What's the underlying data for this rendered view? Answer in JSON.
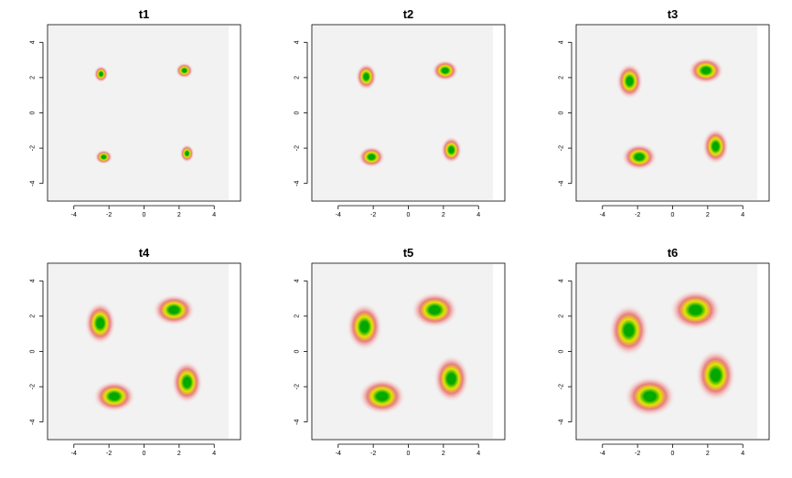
{
  "chart_data": [
    {
      "type": "heatmap",
      "title": "t1",
      "xlim": [
        -5.5,
        5.5
      ],
      "ylim": [
        -5,
        5
      ],
      "x_ticks": [
        -4,
        -2,
        0,
        2,
        4
      ],
      "y_ticks": [
        -4,
        -2,
        0,
        2,
        4
      ],
      "grid": false,
      "blobs": [
        {
          "x": -2.45,
          "y": 2.2,
          "sx": 0.13,
          "sy": 0.15
        },
        {
          "x": 2.3,
          "y": 2.4,
          "sx": 0.16,
          "sy": 0.14
        },
        {
          "x": -2.3,
          "y": -2.5,
          "sx": 0.16,
          "sy": 0.13
        },
        {
          "x": 2.45,
          "y": -2.3,
          "sx": 0.13,
          "sy": 0.16
        }
      ]
    },
    {
      "type": "heatmap",
      "title": "t2",
      "xlim": [
        -5.5,
        5.5
      ],
      "ylim": [
        -5,
        5
      ],
      "x_ticks": [
        -4,
        -2,
        0,
        2,
        4
      ],
      "y_ticks": [
        -4,
        -2,
        0,
        2,
        4
      ],
      "grid": false,
      "blobs": [
        {
          "x": -2.4,
          "y": 2.05,
          "sx": 0.19,
          "sy": 0.24
        },
        {
          "x": 2.1,
          "y": 2.4,
          "sx": 0.24,
          "sy": 0.19
        },
        {
          "x": -2.1,
          "y": -2.5,
          "sx": 0.24,
          "sy": 0.19
        },
        {
          "x": 2.45,
          "y": -2.1,
          "sx": 0.19,
          "sy": 0.24
        }
      ]
    },
    {
      "type": "heatmap",
      "title": "t3",
      "xlim": [
        -5.5,
        5.5
      ],
      "ylim": [
        -5,
        5
      ],
      "x_ticks": [
        -4,
        -2,
        0,
        2,
        4
      ],
      "y_ticks": [
        -4,
        -2,
        0,
        2,
        4
      ],
      "grid": false,
      "blobs": [
        {
          "x": -2.45,
          "y": 1.8,
          "sx": 0.24,
          "sy": 0.32
        },
        {
          "x": 1.9,
          "y": 2.4,
          "sx": 0.32,
          "sy": 0.24
        },
        {
          "x": -1.9,
          "y": -2.5,
          "sx": 0.32,
          "sy": 0.24
        },
        {
          "x": 2.45,
          "y": -1.9,
          "sx": 0.24,
          "sy": 0.32
        }
      ]
    },
    {
      "type": "heatmap",
      "title": "t4",
      "xlim": [
        -5.5,
        5.5
      ],
      "ylim": [
        -5,
        5
      ],
      "x_ticks": [
        -4,
        -2,
        0,
        2,
        4
      ],
      "y_ticks": [
        -4,
        -2,
        0,
        2,
        4
      ],
      "grid": false,
      "blobs": [
        {
          "x": -2.5,
          "y": 1.6,
          "sx": 0.28,
          "sy": 0.38
        },
        {
          "x": 1.7,
          "y": 2.35,
          "sx": 0.38,
          "sy": 0.28
        },
        {
          "x": -1.7,
          "y": -2.55,
          "sx": 0.38,
          "sy": 0.28
        },
        {
          "x": 2.45,
          "y": -1.75,
          "sx": 0.28,
          "sy": 0.38
        }
      ]
    },
    {
      "type": "heatmap",
      "title": "t5",
      "xlim": [
        -5.5,
        5.5
      ],
      "ylim": [
        -5,
        5
      ],
      "x_ticks": [
        -4,
        -2,
        0,
        2,
        4
      ],
      "y_ticks": [
        -4,
        -2,
        0,
        2,
        4
      ],
      "grid": false,
      "blobs": [
        {
          "x": -2.5,
          "y": 1.4,
          "sx": 0.32,
          "sy": 0.42
        },
        {
          "x": 1.5,
          "y": 2.35,
          "sx": 0.42,
          "sy": 0.32
        },
        {
          "x": -1.5,
          "y": -2.55,
          "sx": 0.42,
          "sy": 0.32
        },
        {
          "x": 2.45,
          "y": -1.55,
          "sx": 0.32,
          "sy": 0.42
        }
      ]
    },
    {
      "type": "heatmap",
      "title": "t6",
      "xlim": [
        -5.5,
        5.5
      ],
      "ylim": [
        -5,
        5
      ],
      "x_ticks": [
        -4,
        -2,
        0,
        2,
        4
      ],
      "y_ticks": [
        -4,
        -2,
        0,
        2,
        4
      ],
      "grid": false,
      "blobs": [
        {
          "x": -2.5,
          "y": 1.2,
          "sx": 0.36,
          "sy": 0.46
        },
        {
          "x": 1.3,
          "y": 2.35,
          "sx": 0.46,
          "sy": 0.36
        },
        {
          "x": -1.3,
          "y": -2.55,
          "sx": 0.46,
          "sy": 0.36
        },
        {
          "x": 2.45,
          "y": -1.35,
          "sx": 0.36,
          "sy": 0.46
        }
      ]
    }
  ],
  "colors": {
    "background": "#f2f2f2",
    "core": "#00a800",
    "mid": "#e4e400",
    "outer": "#e87878",
    "halo": "#f2c6c6"
  }
}
